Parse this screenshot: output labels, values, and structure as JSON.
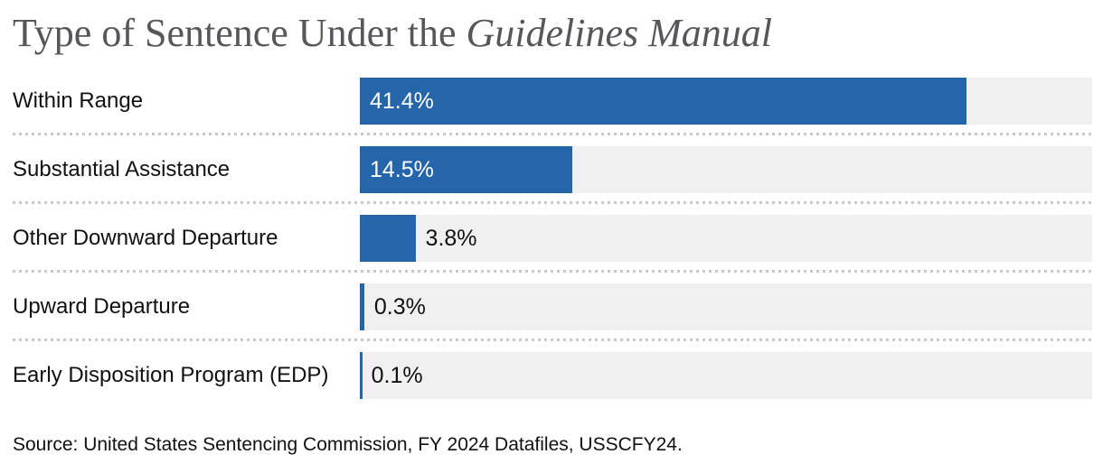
{
  "title": {
    "regular": "Type of Sentence Under the ",
    "italic": "Guidelines Manual"
  },
  "source": "Source: United States Sentencing Commission, FY 2024 Datafiles, USSCFY24.",
  "colors": {
    "bar": "#2565a9",
    "track": "#f0f0f1",
    "title_text": "#57575b",
    "label_text": "#111111",
    "value_inside": "#ffffff",
    "separator": "#c9c9c9",
    "background": "#ffffff"
  },
  "chart_data": {
    "type": "bar",
    "orientation": "horizontal",
    "title": "Type of Sentence Under the Guidelines Manual",
    "title_italic_part": "Guidelines Manual",
    "categories": [
      "Within Range",
      "Substantial Assistance",
      "Other Downward Departure",
      "Upward Departure",
      "Early Disposition Program (EDP)"
    ],
    "values": [
      41.4,
      14.5,
      3.8,
      0.3,
      0.1
    ],
    "labels": [
      "41.4%",
      "14.5%",
      "3.8%",
      "0.3%",
      "0.1%"
    ],
    "xlim": [
      0,
      50
    ],
    "grid": false,
    "legend": false,
    "value_label_placement": "inside bar when wide, right of bar when narrow",
    "source": "Source: United States Sentencing Commission, FY 2024 Datafiles, USSCFY24."
  }
}
